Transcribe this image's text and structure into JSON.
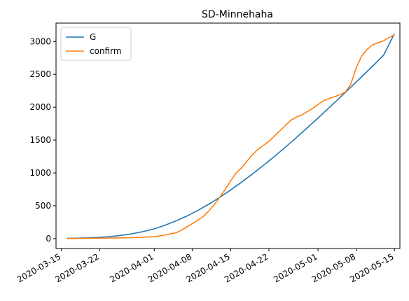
{
  "chart_data": {
    "type": "line",
    "title": "SD-Minnehaha",
    "xlabel": "",
    "ylabel": "",
    "x_type": "date",
    "xlim": [
      "2020-03-14",
      "2020-05-16"
    ],
    "ylim": [
      -150,
      3280
    ],
    "grid": false,
    "legend_position": "top-left",
    "x_ticks": [
      "2020-03-15",
      "2020-03-22",
      "2020-04-01",
      "2020-04-08",
      "2020-04-15",
      "2020-04-22",
      "2020-05-01",
      "2020-05-08",
      "2020-05-15"
    ],
    "y_ticks": [
      0,
      500,
      1000,
      1500,
      2000,
      2500,
      3000
    ],
    "series": [
      {
        "name": "G",
        "color": "#1f77b4",
        "points": [
          [
            "2020-03-16",
            5
          ],
          [
            "2020-03-18",
            8
          ],
          [
            "2020-03-20",
            12
          ],
          [
            "2020-03-22",
            20
          ],
          [
            "2020-03-24",
            32
          ],
          [
            "2020-03-26",
            50
          ],
          [
            "2020-03-28",
            75
          ],
          [
            "2020-03-30",
            108
          ],
          [
            "2020-04-01",
            150
          ],
          [
            "2020-04-03",
            205
          ],
          [
            "2020-04-05",
            270
          ],
          [
            "2020-04-07",
            345
          ],
          [
            "2020-04-09",
            430
          ],
          [
            "2020-04-11",
            525
          ],
          [
            "2020-04-13",
            630
          ],
          [
            "2020-04-15",
            740
          ],
          [
            "2020-04-17",
            860
          ],
          [
            "2020-04-19",
            985
          ],
          [
            "2020-04-21",
            1115
          ],
          [
            "2020-04-23",
            1250
          ],
          [
            "2020-04-25",
            1390
          ],
          [
            "2020-04-27",
            1535
          ],
          [
            "2020-04-29",
            1685
          ],
          [
            "2020-05-01",
            1835
          ],
          [
            "2020-05-03",
            1990
          ],
          [
            "2020-05-05",
            2145
          ],
          [
            "2020-05-07",
            2305
          ],
          [
            "2020-05-09",
            2465
          ],
          [
            "2020-05-11",
            2625
          ],
          [
            "2020-05-13",
            2790
          ],
          [
            "2020-05-15",
            3120
          ]
        ]
      },
      {
        "name": "confirm",
        "color": "#ff7f0e",
        "points": [
          [
            "2020-03-16",
            3
          ],
          [
            "2020-03-18",
            4
          ],
          [
            "2020-03-20",
            5
          ],
          [
            "2020-03-22",
            7
          ],
          [
            "2020-03-24",
            9
          ],
          [
            "2020-03-26",
            12
          ],
          [
            "2020-03-28",
            15
          ],
          [
            "2020-03-30",
            22
          ],
          [
            "2020-04-01",
            30
          ],
          [
            "2020-04-03",
            55
          ],
          [
            "2020-04-05",
            90
          ],
          [
            "2020-04-06",
            130
          ],
          [
            "2020-04-07",
            180
          ],
          [
            "2020-04-08",
            230
          ],
          [
            "2020-04-09",
            280
          ],
          [
            "2020-04-10",
            340
          ],
          [
            "2020-04-11",
            420
          ],
          [
            "2020-04-12",
            520
          ],
          [
            "2020-04-13",
            630
          ],
          [
            "2020-04-14",
            750
          ],
          [
            "2020-04-15",
            880
          ],
          [
            "2020-04-16",
            1000
          ],
          [
            "2020-04-17",
            1080
          ],
          [
            "2020-04-18",
            1180
          ],
          [
            "2020-04-19",
            1280
          ],
          [
            "2020-04-20",
            1360
          ],
          [
            "2020-04-21",
            1420
          ],
          [
            "2020-04-22",
            1480
          ],
          [
            "2020-04-23",
            1560
          ],
          [
            "2020-04-24",
            1640
          ],
          [
            "2020-04-25",
            1720
          ],
          [
            "2020-04-26",
            1800
          ],
          [
            "2020-04-27",
            1850
          ],
          [
            "2020-04-28",
            1880
          ],
          [
            "2020-04-29",
            1930
          ],
          [
            "2020-04-30",
            1980
          ],
          [
            "2020-05-01",
            2040
          ],
          [
            "2020-05-02",
            2100
          ],
          [
            "2020-05-03",
            2130
          ],
          [
            "2020-05-04",
            2160
          ],
          [
            "2020-05-05",
            2190
          ],
          [
            "2020-05-06",
            2230
          ],
          [
            "2020-05-07",
            2350
          ],
          [
            "2020-05-08",
            2600
          ],
          [
            "2020-05-09",
            2780
          ],
          [
            "2020-05-10",
            2880
          ],
          [
            "2020-05-11",
            2950
          ],
          [
            "2020-05-12",
            2980
          ],
          [
            "2020-05-13",
            3010
          ],
          [
            "2020-05-14",
            3060
          ],
          [
            "2020-05-15",
            3100
          ]
        ]
      }
    ]
  }
}
